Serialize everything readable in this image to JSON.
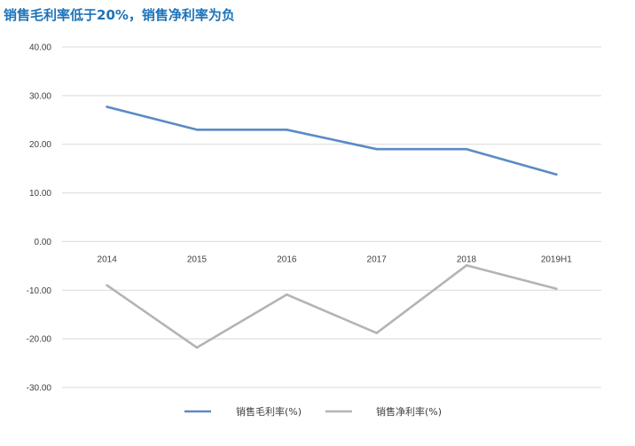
{
  "page": {
    "title": "销售毛利率低于20%，销售净利率为负"
  },
  "colors": {
    "title": "#1d73b8",
    "series_gross": "#5b8ac6",
    "series_net": "#b4b4b4",
    "grid": "#d9d9d9",
    "text": "#404040"
  },
  "chart_data": {
    "type": "line",
    "title": "销售毛利率低于20%，销售净利率为负",
    "categories": [
      "2014",
      "2015",
      "2016",
      "2017",
      "2018",
      "2019H1"
    ],
    "series": [
      {
        "name": "销售毛利率(%)",
        "values": [
          27.7,
          23.0,
          23.0,
          19.0,
          19.0,
          13.8
        ]
      },
      {
        "name": "销售净利率(%)",
        "values": [
          -9.0,
          -21.8,
          -10.9,
          -18.8,
          -4.9,
          -9.7
        ]
      }
    ],
    "ylim": [
      -30,
      40
    ],
    "yticks": [
      "40.00",
      "30.00",
      "20.00",
      "10.00",
      "0.00",
      "-10.00",
      "-20.00",
      "-30.00"
    ],
    "grid": true,
    "legend_position": "bottom"
  }
}
